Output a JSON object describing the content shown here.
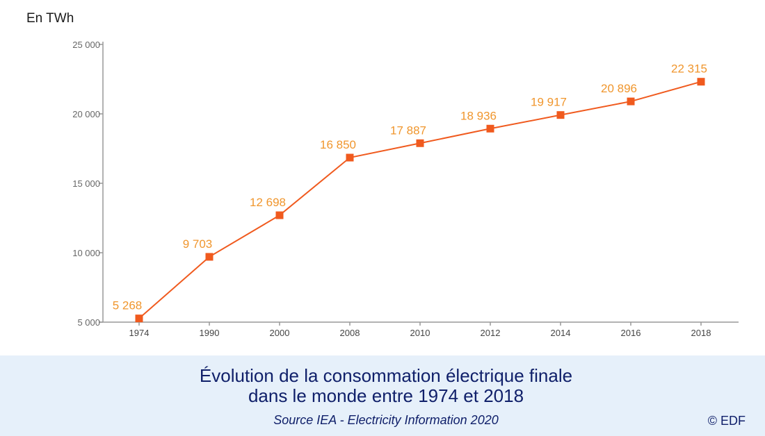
{
  "chart_data": {
    "type": "line",
    "title": "Évolution de la consommation électrique finale dans le monde entre 1974 et 2018",
    "ylabel": "En TWh",
    "xlabel": "",
    "categories": [
      "1974",
      "1990",
      "2000",
      "2008",
      "2010",
      "2012",
      "2014",
      "2016",
      "2018"
    ],
    "series": [
      {
        "values": [
          5268,
          9703,
          12698,
          16850,
          17887,
          18936,
          19917,
          20896,
          22315
        ],
        "labels": [
          "5 268",
          "9 703",
          "12 698",
          "16 850",
          "17 887",
          "18 936",
          "19 917",
          "20 896",
          "22 315"
        ]
      }
    ],
    "ylim": [
      5000,
      25000
    ],
    "yticks": [
      5000,
      10000,
      15000,
      20000,
      25000
    ],
    "ytick_labels": [
      "5 000",
      "10 000",
      "15 000",
      "20 000",
      "25 000"
    ],
    "grid": false,
    "legend": "none",
    "colors": {
      "line": "#f05a1e",
      "marker": "#f05a1e",
      "label": "#f0962d",
      "axis": "#999999"
    }
  },
  "caption": {
    "title_line1": "Évolution de la consommation électrique finale",
    "title_line2": "dans le monde entre 1974 et 2018",
    "source": "Source IEA - Electricity Information 2020",
    "copyright": "© EDF",
    "band_color": "#e6f0fa",
    "text_color": "#10206a"
  }
}
